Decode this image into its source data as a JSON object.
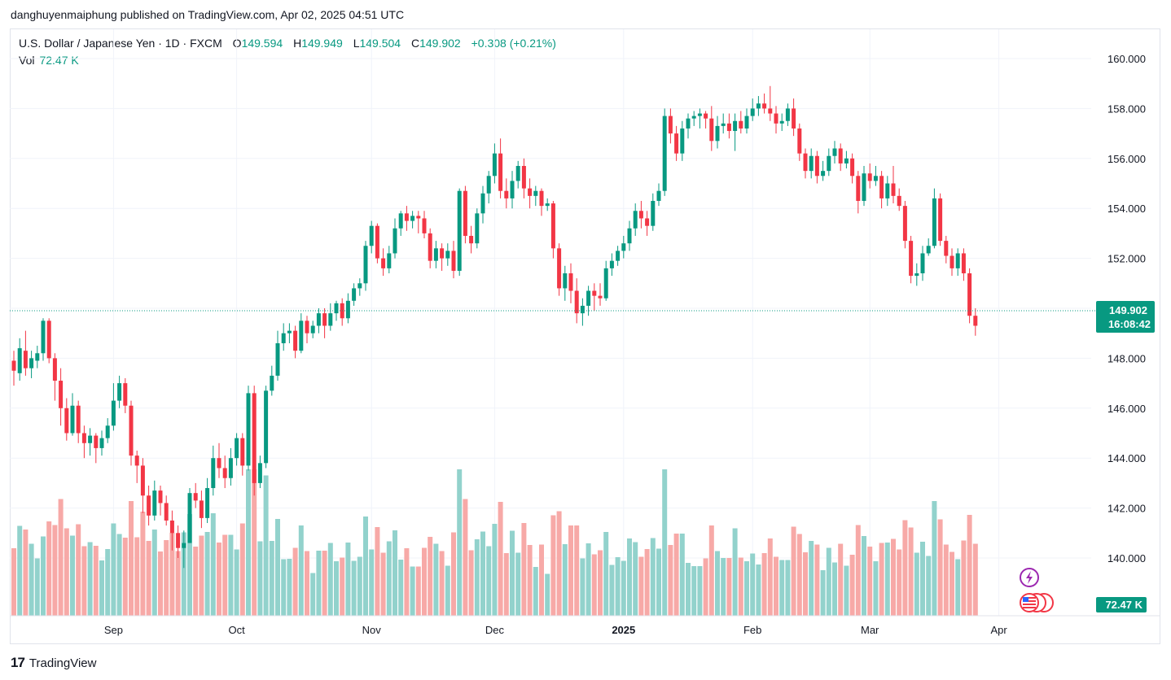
{
  "header": {
    "published": "danghuyenmaiphung published on TradingView.com, Apr 02, 2025 04:51 UTC"
  },
  "legend": {
    "symbol": "U.S. Dollar / Japanese Yen · 1D · FXCM",
    "open_label": "O",
    "open": "149.594",
    "high_label": "H",
    "high": "149.949",
    "low_label": "L",
    "low": "149.504",
    "close_label": "C",
    "close": "149.902",
    "change": "+0.308 (+0.21%)",
    "vol_label": "Vol",
    "vol": "72.47 K"
  },
  "price_tag": {
    "price": "149.902",
    "countdown": "16:08:42"
  },
  "volume_tag": "72.47 K",
  "footer": {
    "brand": "TradingView"
  },
  "colors": {
    "up": "#089981",
    "down": "#f23645",
    "vol_up": "#92d2cc",
    "vol_down": "#f7a9a7"
  },
  "chart_data": {
    "type": "candlestick",
    "yticks": [
      "160.000",
      "158.000",
      "156.000",
      "154.000",
      "152.000",
      "150.000",
      "148.000",
      "146.000",
      "144.000",
      "142.000",
      "140.000"
    ],
    "ylim": [
      139.0,
      160.6
    ],
    "xticks": [
      {
        "label": "Sep",
        "i": 17
      },
      {
        "label": "Oct",
        "i": 38
      },
      {
        "label": "Nov",
        "i": 61
      },
      {
        "label": "Dec",
        "i": 82
      },
      {
        "label": "2025",
        "i": 104,
        "bold": true
      },
      {
        "label": "Feb",
        "i": 126
      },
      {
        "label": "Mar",
        "i": 146
      },
      {
        "label": "Apr",
        "i": 168
      }
    ],
    "last_price": 149.902,
    "candles": [
      [
        147.9,
        147.5,
        148.3,
        146.9
      ],
      [
        147.4,
        148.4,
        148.8,
        147.1
      ],
      [
        148.3,
        147.6,
        149.1,
        147.3
      ],
      [
        147.6,
        148.0,
        148.3,
        147.2
      ],
      [
        147.9,
        148.2,
        148.5,
        147.6
      ],
      [
        148.2,
        149.5,
        149.6,
        147.9
      ],
      [
        149.5,
        148.0,
        149.6,
        147.8
      ],
      [
        148.0,
        147.1,
        148.2,
        146.3
      ],
      [
        147.1,
        146.0,
        147.6,
        145.3
      ],
      [
        146.0,
        145.0,
        146.4,
        144.7
      ],
      [
        145.0,
        146.1,
        146.6,
        144.9
      ],
      [
        146.1,
        145.0,
        146.3,
        144.6
      ],
      [
        145.0,
        144.6,
        145.3,
        144.0
      ],
      [
        144.6,
        144.9,
        145.2,
        144.1
      ],
      [
        144.9,
        144.4,
        145.0,
        143.8
      ],
      [
        144.4,
        144.8,
        145.1,
        144.1
      ],
      [
        144.8,
        145.3,
        145.6,
        144.6
      ],
      [
        145.3,
        146.3,
        147.0,
        145.1
      ],
      [
        146.3,
        147.0,
        147.3,
        146.0
      ],
      [
        147.0,
        146.1,
        147.2,
        145.8
      ],
      [
        146.1,
        144.1,
        146.3,
        143.7
      ],
      [
        144.1,
        143.7,
        144.3,
        143.0
      ],
      [
        143.7,
        142.5,
        144.0,
        141.8
      ],
      [
        142.5,
        141.7,
        142.9,
        141.3
      ],
      [
        141.7,
        142.7,
        143.1,
        141.5
      ],
      [
        142.7,
        142.2,
        142.9,
        141.7
      ],
      [
        142.2,
        141.5,
        142.5,
        141.3
      ],
      [
        141.5,
        141.0,
        141.9,
        140.3
      ],
      [
        141.0,
        140.4,
        141.3,
        140.0
      ],
      [
        140.4,
        140.6,
        141.1,
        139.6
      ],
      [
        140.6,
        142.6,
        142.8,
        140.6
      ],
      [
        142.6,
        142.3,
        143.0,
        142.0
      ],
      [
        142.3,
        141.6,
        142.7,
        141.2
      ],
      [
        141.6,
        142.8,
        143.2,
        141.4
      ],
      [
        142.8,
        144.0,
        144.5,
        142.5
      ],
      [
        144.0,
        143.6,
        144.6,
        143.2
      ],
      [
        143.6,
        143.2,
        144.1,
        142.8
      ],
      [
        143.2,
        144.0,
        144.4,
        142.9
      ],
      [
        144.0,
        144.8,
        145.0,
        143.7
      ],
      [
        144.8,
        143.7,
        145.0,
        143.3
      ],
      [
        143.7,
        146.6,
        146.9,
        143.5
      ],
      [
        146.6,
        143.0,
        146.9,
        142.5
      ],
      [
        143.0,
        143.8,
        144.1,
        142.8
      ],
      [
        143.8,
        146.7,
        146.9,
        143.6
      ],
      [
        146.7,
        147.3,
        147.7,
        146.5
      ],
      [
        147.3,
        148.6,
        149.1,
        147.1
      ],
      [
        148.6,
        149.0,
        149.4,
        148.3
      ],
      [
        149.0,
        149.1,
        149.4,
        148.6
      ],
      [
        149.1,
        148.3,
        149.3,
        148.0
      ],
      [
        148.3,
        149.5,
        149.8,
        148.2
      ],
      [
        149.5,
        149.0,
        149.7,
        148.6
      ],
      [
        149.0,
        149.3,
        149.5,
        148.8
      ],
      [
        149.3,
        149.8,
        150.0,
        149.0
      ],
      [
        149.8,
        149.3,
        150.0,
        148.8
      ],
      [
        149.3,
        149.8,
        150.2,
        149.1
      ],
      [
        149.8,
        150.2,
        150.3,
        149.5
      ],
      [
        150.2,
        149.6,
        150.4,
        149.3
      ],
      [
        149.6,
        150.3,
        150.6,
        149.4
      ],
      [
        150.3,
        150.8,
        151.0,
        150.1
      ],
      [
        150.8,
        151.0,
        151.2,
        150.5
      ],
      [
        151.0,
        152.5,
        152.7,
        150.7
      ],
      [
        152.5,
        153.3,
        153.5,
        152.2
      ],
      [
        153.3,
        152.0,
        153.4,
        151.8
      ],
      [
        152.0,
        151.6,
        152.4,
        151.3
      ],
      [
        151.6,
        152.2,
        152.5,
        151.4
      ],
      [
        152.2,
        153.2,
        153.6,
        152.0
      ],
      [
        153.2,
        153.8,
        153.9,
        152.9
      ],
      [
        153.8,
        153.5,
        154.1,
        153.1
      ],
      [
        153.5,
        153.7,
        153.9,
        153.2
      ],
      [
        153.7,
        153.6,
        153.9,
        153.0
      ],
      [
        153.6,
        153.0,
        153.9,
        152.8
      ],
      [
        153.0,
        151.9,
        153.2,
        151.6
      ],
      [
        151.9,
        152.4,
        152.7,
        151.6
      ],
      [
        152.4,
        152.0,
        152.6,
        151.5
      ],
      [
        152.0,
        152.3,
        152.6,
        151.7
      ],
      [
        152.3,
        151.5,
        152.7,
        151.2
      ],
      [
        151.5,
        154.7,
        154.8,
        151.3
      ],
      [
        154.7,
        152.9,
        154.9,
        152.6
      ],
      [
        152.9,
        152.6,
        153.3,
        152.2
      ],
      [
        152.6,
        153.8,
        154.0,
        152.4
      ],
      [
        153.8,
        154.6,
        154.9,
        153.4
      ],
      [
        154.6,
        155.3,
        155.5,
        154.2
      ],
      [
        155.3,
        156.2,
        156.6,
        155.0
      ],
      [
        156.2,
        154.7,
        156.8,
        154.4
      ],
      [
        154.7,
        154.4,
        155.2,
        154.0
      ],
      [
        154.4,
        155.1,
        155.5,
        154.0
      ],
      [
        155.1,
        155.7,
        155.9,
        154.8
      ],
      [
        155.7,
        154.8,
        156.0,
        154.4
      ],
      [
        154.8,
        154.5,
        155.2,
        154.0
      ],
      [
        154.5,
        154.7,
        154.9,
        154.1
      ],
      [
        154.7,
        154.1,
        154.8,
        153.7
      ],
      [
        154.1,
        154.2,
        154.4,
        153.9
      ],
      [
        154.2,
        152.4,
        154.3,
        152.0
      ],
      [
        152.4,
        150.8,
        152.6,
        150.5
      ],
      [
        150.8,
        151.4,
        151.7,
        150.3
      ],
      [
        151.4,
        150.7,
        151.8,
        150.2
      ],
      [
        150.7,
        149.8,
        151.2,
        149.4
      ],
      [
        149.8,
        150.1,
        150.4,
        149.3
      ],
      [
        150.1,
        150.7,
        150.9,
        149.7
      ],
      [
        150.7,
        150.5,
        151.0,
        149.9
      ],
      [
        150.5,
        150.4,
        151.0,
        150.1
      ],
      [
        150.4,
        151.6,
        151.9,
        150.3
      ],
      [
        151.6,
        151.9,
        152.2,
        151.3
      ],
      [
        151.9,
        152.3,
        152.5,
        151.7
      ],
      [
        152.3,
        152.6,
        152.9,
        152.0
      ],
      [
        152.6,
        153.2,
        153.5,
        152.3
      ],
      [
        153.2,
        153.9,
        154.2,
        152.9
      ],
      [
        153.9,
        153.6,
        154.3,
        153.2
      ],
      [
        153.6,
        153.3,
        153.9,
        152.9
      ],
      [
        153.3,
        154.3,
        154.6,
        153.1
      ],
      [
        154.3,
        154.7,
        155.0,
        154.1
      ],
      [
        154.7,
        157.7,
        158.0,
        154.5
      ],
      [
        157.7,
        157.0,
        158.0,
        156.6
      ],
      [
        157.0,
        156.2,
        157.3,
        155.9
      ],
      [
        156.2,
        157.2,
        157.5,
        155.9
      ],
      [
        157.2,
        157.6,
        157.8,
        156.8
      ],
      [
        157.6,
        157.7,
        157.9,
        157.3
      ],
      [
        157.7,
        157.8,
        158.0,
        157.2
      ],
      [
        157.8,
        157.6,
        157.9,
        157.2
      ],
      [
        157.6,
        156.7,
        158.1,
        156.3
      ],
      [
        156.7,
        157.3,
        157.7,
        156.4
      ],
      [
        157.3,
        157.4,
        157.8,
        157.0
      ],
      [
        157.4,
        157.1,
        157.8,
        156.8
      ],
      [
        157.1,
        157.5,
        157.8,
        156.3
      ],
      [
        157.5,
        157.2,
        157.9,
        157.0
      ],
      [
        157.2,
        157.7,
        158.0,
        157.0
      ],
      [
        157.7,
        158.0,
        158.4,
        157.5
      ],
      [
        158.0,
        158.2,
        158.5,
        157.7
      ],
      [
        158.2,
        158.0,
        158.6,
        157.8
      ],
      [
        158.0,
        157.8,
        158.9,
        157.5
      ],
      [
        157.8,
        157.4,
        158.1,
        157.0
      ],
      [
        157.4,
        157.5,
        157.8,
        157.1
      ],
      [
        157.5,
        158.0,
        158.2,
        157.3
      ],
      [
        158.0,
        157.2,
        158.4,
        156.9
      ],
      [
        157.2,
        156.2,
        157.4,
        155.9
      ],
      [
        156.2,
        155.5,
        156.4,
        155.2
      ],
      [
        155.5,
        156.1,
        156.4,
        155.2
      ],
      [
        156.1,
        155.3,
        156.3,
        155.0
      ],
      [
        155.3,
        155.5,
        155.9,
        155.1
      ],
      [
        155.5,
        156.1,
        156.4,
        155.3
      ],
      [
        156.1,
        156.4,
        156.7,
        155.8
      ],
      [
        156.4,
        155.8,
        156.6,
        155.5
      ],
      [
        155.8,
        156.0,
        156.3,
        155.6
      ],
      [
        156.0,
        155.3,
        156.2,
        155.0
      ],
      [
        155.3,
        154.3,
        155.5,
        153.8
      ],
      [
        154.3,
        155.4,
        155.7,
        154.1
      ],
      [
        155.4,
        155.1,
        155.8,
        154.8
      ],
      [
        155.1,
        155.3,
        155.7,
        154.9
      ],
      [
        155.3,
        154.4,
        155.5,
        154.0
      ],
      [
        154.4,
        155.0,
        155.3,
        154.1
      ],
      [
        155.0,
        154.5,
        155.7,
        154.2
      ],
      [
        154.5,
        154.1,
        154.8,
        153.9
      ],
      [
        154.1,
        152.7,
        154.3,
        152.4
      ],
      [
        152.7,
        151.3,
        152.9,
        151.0
      ],
      [
        151.3,
        151.4,
        151.8,
        150.9
      ],
      [
        151.4,
        152.2,
        152.5,
        151.1
      ],
      [
        152.2,
        152.5,
        152.8,
        152.1
      ],
      [
        152.5,
        154.4,
        154.8,
        152.4
      ],
      [
        154.4,
        152.7,
        154.6,
        152.5
      ],
      [
        152.7,
        152.1,
        152.9,
        151.8
      ],
      [
        152.1,
        151.6,
        152.4,
        151.3
      ],
      [
        151.6,
        152.2,
        152.4,
        151.3
      ],
      [
        152.2,
        151.4,
        152.4,
        151.1
      ],
      [
        151.4,
        149.7,
        151.6,
        149.4
      ],
      [
        149.7,
        149.3,
        150.0,
        148.9
      ]
    ],
    "volumes": []
  }
}
